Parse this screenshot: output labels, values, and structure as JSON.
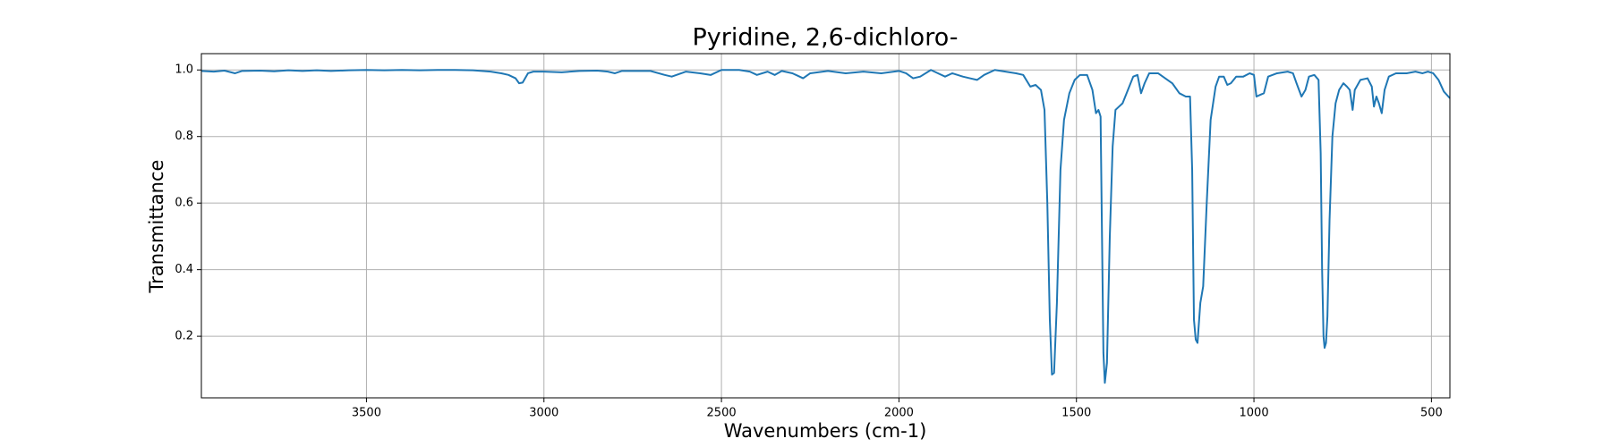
{
  "chart_data": {
    "type": "line",
    "title": "Pyridine, 2,6-dichloro-",
    "xlabel": "Wavenumbers (cm-1)",
    "ylabel": "Transmittance",
    "color": "#1f77b4",
    "grid": true,
    "xlim": [
      3965,
      448
    ],
    "ylim": [
      0.015,
      1.049
    ],
    "xticks": [
      3500,
      3000,
      2500,
      2000,
      1500,
      1000,
      500
    ],
    "yticks": [
      0.2,
      0.4,
      0.6,
      0.8,
      {
        "value": 1,
        "label": "1.0"
      }
    ],
    "x": [
      3965,
      3930,
      3900,
      3870,
      3850,
      3800,
      3760,
      3720,
      3680,
      3640,
      3600,
      3550,
      3500,
      3450,
      3400,
      3350,
      3300,
      3250,
      3200,
      3150,
      3120,
      3100,
      3080,
      3070,
      3060,
      3045,
      3030,
      3000,
      2950,
      2900,
      2850,
      2820,
      2800,
      2780,
      2700,
      2660,
      2640,
      2600,
      2560,
      2530,
      2500,
      2450,
      2420,
      2400,
      2370,
      2350,
      2330,
      2300,
      2270,
      2250,
      2200,
      2150,
      2100,
      2050,
      2000,
      1980,
      1960,
      1940,
      1910,
      1890,
      1870,
      1850,
      1820,
      1800,
      1780,
      1760,
      1730,
      1700,
      1670,
      1650,
      1630,
      1615,
      1600,
      1590,
      1582,
      1575,
      1569,
      1563,
      1555,
      1545,
      1535,
      1520,
      1505,
      1490,
      1470,
      1455,
      1445,
      1438,
      1432,
      1428,
      1424,
      1420,
      1414,
      1406,
      1398,
      1390,
      1380,
      1370,
      1355,
      1340,
      1328,
      1318,
      1308,
      1295,
      1270,
      1250,
      1230,
      1210,
      1192,
      1180,
      1174,
      1169,
      1164,
      1159,
      1151,
      1143,
      1133,
      1122,
      1108,
      1098,
      1085,
      1075,
      1065,
      1050,
      1030,
      1012,
      1000,
      993,
      983,
      972,
      960,
      935,
      905,
      890,
      880,
      866,
      855,
      845,
      830,
      818,
      812,
      808,
      804,
      801,
      797,
      793,
      787,
      779,
      770,
      760,
      748,
      738,
      730,
      722,
      716,
      700,
      680,
      668,
      662,
      655,
      648,
      640,
      632,
      620,
      600,
      570,
      545,
      525,
      510,
      495,
      480,
      465,
      448
    ],
    "values": [
      0.997,
      0.995,
      0.998,
      0.99,
      0.997,
      0.998,
      0.996,
      0.999,
      0.997,
      0.999,
      0.997,
      0.999,
      1.0,
      0.999,
      1.0,
      0.999,
      1.0,
      1.0,
      0.999,
      0.995,
      0.99,
      0.985,
      0.975,
      0.96,
      0.962,
      0.99,
      0.995,
      0.995,
      0.993,
      0.997,
      0.998,
      0.995,
      0.99,
      0.997,
      0.997,
      0.985,
      0.98,
      0.995,
      0.99,
      0.985,
      1.0,
      1.0,
      0.995,
      0.985,
      0.995,
      0.985,
      0.997,
      0.99,
      0.975,
      0.99,
      0.997,
      0.99,
      0.995,
      0.99,
      0.997,
      0.99,
      0.975,
      0.98,
      1.0,
      0.99,
      0.98,
      0.99,
      0.98,
      0.975,
      0.97,
      0.985,
      1.0,
      0.995,
      0.99,
      0.985,
      0.95,
      0.955,
      0.94,
      0.88,
      0.6,
      0.25,
      0.085,
      0.09,
      0.3,
      0.7,
      0.85,
      0.93,
      0.97,
      0.985,
      0.985,
      0.94,
      0.87,
      0.88,
      0.86,
      0.5,
      0.15,
      0.06,
      0.12,
      0.5,
      0.77,
      0.88,
      0.89,
      0.9,
      0.94,
      0.98,
      0.985,
      0.93,
      0.96,
      0.99,
      0.99,
      0.975,
      0.96,
      0.93,
      0.92,
      0.92,
      0.7,
      0.25,
      0.19,
      0.18,
      0.3,
      0.35,
      0.6,
      0.85,
      0.95,
      0.98,
      0.98,
      0.955,
      0.96,
      0.98,
      0.98,
      0.99,
      0.985,
      0.92,
      0.925,
      0.93,
      0.98,
      0.99,
      0.995,
      0.99,
      0.96,
      0.92,
      0.94,
      0.98,
      0.985,
      0.97,
      0.75,
      0.4,
      0.2,
      0.165,
      0.18,
      0.26,
      0.55,
      0.8,
      0.9,
      0.94,
      0.96,
      0.95,
      0.94,
      0.88,
      0.94,
      0.97,
      0.975,
      0.95,
      0.89,
      0.92,
      0.9,
      0.87,
      0.94,
      0.98,
      0.99,
      0.99,
      0.995,
      0.99,
      0.995,
      0.99,
      0.97,
      0.935,
      0.915
    ]
  }
}
